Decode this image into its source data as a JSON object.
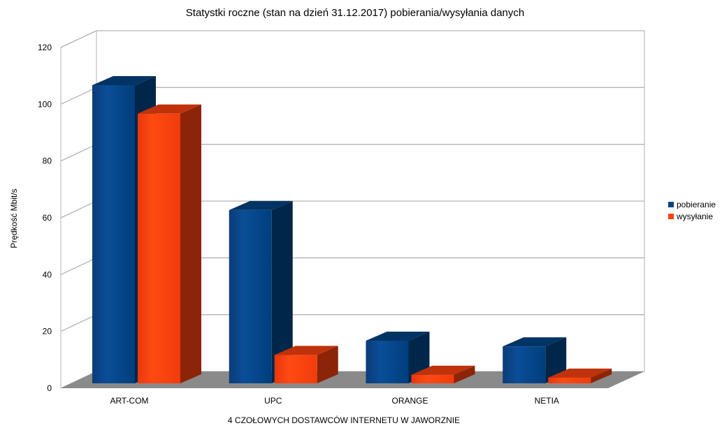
{
  "chart_data": {
    "type": "bar",
    "title": "Statystki roczne (stan na dzień 31.12.2017) pobierania/wysyłania danych",
    "xlabel": "4 CZOŁOWYCH DOSTAWCÓW INTERNETU W JAWORZNIE",
    "ylabel": "Prędkość Mbit/s",
    "categories": [
      "ART-COM",
      "UPC",
      "ORANGE",
      "NETIA"
    ],
    "series": [
      {
        "name": "pobieranie",
        "values": [
          105,
          61,
          15,
          13
        ],
        "color": "#004586"
      },
      {
        "name": "wysyłanie",
        "values": [
          95,
          10,
          3,
          2
        ],
        "color": "#ff420e"
      }
    ],
    "ylim": [
      0,
      120
    ],
    "yticks": [
      "0",
      "20",
      "40",
      "60",
      "80",
      "100",
      "120"
    ],
    "grid": true,
    "legend": "right",
    "style": "3d"
  }
}
